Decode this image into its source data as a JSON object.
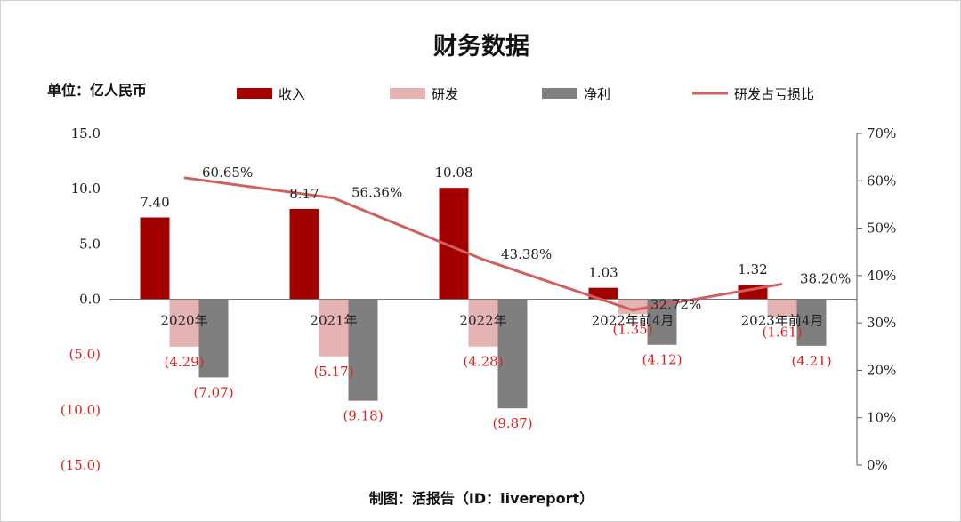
{
  "title": "财务数据",
  "unit_label": "单位：亿人民币",
  "footer": "制图：活报告（ID：livereport）",
  "colors": {
    "revenue": "#a30000",
    "rnd": "#e6b3b3",
    "net_profit": "#7f7f7f",
    "ratio_line": "#d06060",
    "negative_label": "#e02020"
  },
  "chart_data": {
    "type": "bar",
    "categories": [
      "2020年",
      "2021年",
      "2022年",
      "2022年前4月",
      "2023年前4月"
    ],
    "series": [
      {
        "name": "收入",
        "type": "bar",
        "values": [
          7.4,
          8.17,
          10.08,
          1.03,
          1.32
        ],
        "labels": [
          "7.40",
          "8.17",
          "10.08",
          "1.03",
          "1.32"
        ]
      },
      {
        "name": "研发",
        "type": "bar",
        "values": [
          -4.29,
          -5.17,
          -4.28,
          -1.35,
          -1.61
        ],
        "labels": [
          "(4.29)",
          "(5.17)",
          "(4.28)",
          "(1.35)",
          "(1.61)"
        ]
      },
      {
        "name": "净利",
        "type": "bar",
        "values": [
          -7.07,
          -9.18,
          -9.87,
          -4.12,
          -4.21
        ],
        "labels": [
          "(7.07)",
          "(9.18)",
          "(9.87)",
          "(4.12)",
          "(4.21)"
        ]
      },
      {
        "name": "研发占亏损比",
        "type": "line",
        "axis": "right",
        "values": [
          60.65,
          56.36,
          43.38,
          32.72,
          38.2
        ],
        "labels": [
          "60.65%",
          "56.36%",
          "43.38%",
          "32.72%",
          "38.20%"
        ]
      }
    ],
    "left_axis": {
      "range": [
        -15,
        15
      ],
      "ticks": [
        15,
        10,
        5,
        0,
        -5,
        -10,
        -15
      ],
      "tick_labels": [
        "15.0",
        "10.0",
        "5.0",
        "0.0",
        "(5.0)",
        "(10.0)",
        "(15.0)"
      ]
    },
    "right_axis": {
      "range": [
        0,
        70
      ],
      "ticks": [
        70,
        60,
        50,
        40,
        30,
        20,
        10,
        0
      ],
      "tick_labels": [
        "70%",
        "60%",
        "50%",
        "40%",
        "30%",
        "20%",
        "10%",
        "0%"
      ]
    },
    "legend": {
      "position": "top",
      "entries": [
        "收入",
        "研发",
        "净利",
        "研发占亏损比"
      ]
    },
    "grid": false
  }
}
